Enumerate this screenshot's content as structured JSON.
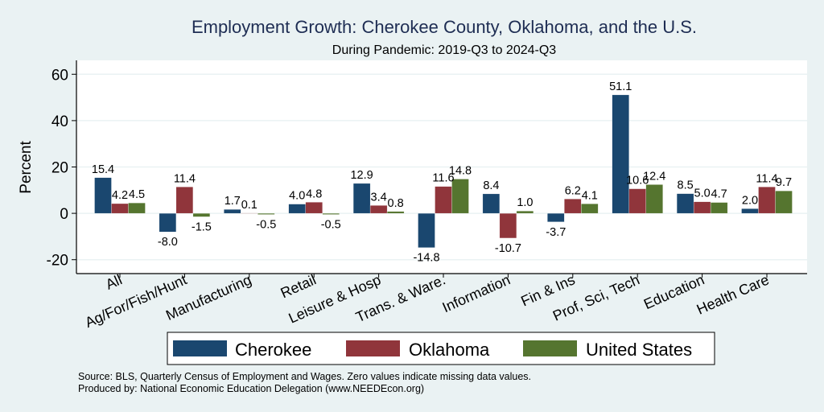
{
  "chart_data": {
    "type": "bar",
    "title": "Employment Growth: Cherokee County, Oklahoma, and the U.S.",
    "subtitle": "During Pandemic: 2019-Q3 to 2024-Q3",
    "ylabel": "Percent",
    "ylim": [
      -26,
      66
    ],
    "yticks": [
      -20,
      0,
      20,
      40,
      60
    ],
    "grid": true,
    "legend_position": "bottom",
    "categories": [
      "All",
      "Ag/For/Fish/Hunt",
      "Manufacturing",
      "Retail",
      "Leisure & Hosp",
      "Trans. & Ware.",
      "Information",
      "Fin & Ins",
      "Prof, Sci, Tech",
      "Education",
      "Health Care"
    ],
    "series": [
      {
        "name": "Cherokee",
        "color": "#1a476f",
        "values": [
          15.4,
          -8.0,
          1.7,
          4.0,
          12.9,
          -14.8,
          8.4,
          -3.7,
          51.1,
          8.5,
          2.0
        ]
      },
      {
        "name": "Oklahoma",
        "color": "#90353b",
        "values": [
          4.2,
          11.4,
          0.1,
          4.8,
          3.4,
          11.6,
          -10.7,
          6.2,
          10.6,
          5.0,
          11.4
        ]
      },
      {
        "name": "United States",
        "color": "#55752f",
        "values": [
          4.5,
          -1.5,
          -0.5,
          -0.5,
          0.8,
          14.8,
          1.0,
          4.1,
          12.4,
          4.7,
          9.7
        ]
      }
    ],
    "notes": [
      "Source: BLS, Quarterly Census of Employment and Wages. Zero values indicate missing data values.",
      "Produced by: National Economic Education Delegation (www.NEEDEcon.org)"
    ]
  }
}
